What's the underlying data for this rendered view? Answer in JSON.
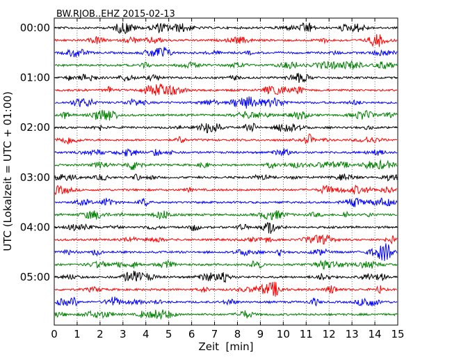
{
  "chart_data": {
    "type": "line",
    "title": "BW.RJOB..EHZ 2015-02-13",
    "xlabel": "Zeit  [min]",
    "ylabel": "UTC (Lokalzeit = UTC + 01:00)",
    "xlim": [
      0,
      15
    ],
    "x_ticks": [
      0,
      1,
      2,
      3,
      4,
      5,
      6,
      7,
      8,
      9,
      10,
      11,
      12,
      13,
      14,
      15
    ],
    "y_tick_labels": [
      "00:00",
      "01:00",
      "02:00",
      "03:00",
      "04:00",
      "05:00"
    ],
    "y_tick_rows": [
      0,
      4,
      8,
      12,
      16,
      20
    ],
    "grid": "vertical dotted",
    "trace_colors": [
      "#000000",
      "#ff0000",
      "#0000ff",
      "#008000"
    ],
    "trace_count": 24,
    "trace_interval_minutes": 15
  }
}
